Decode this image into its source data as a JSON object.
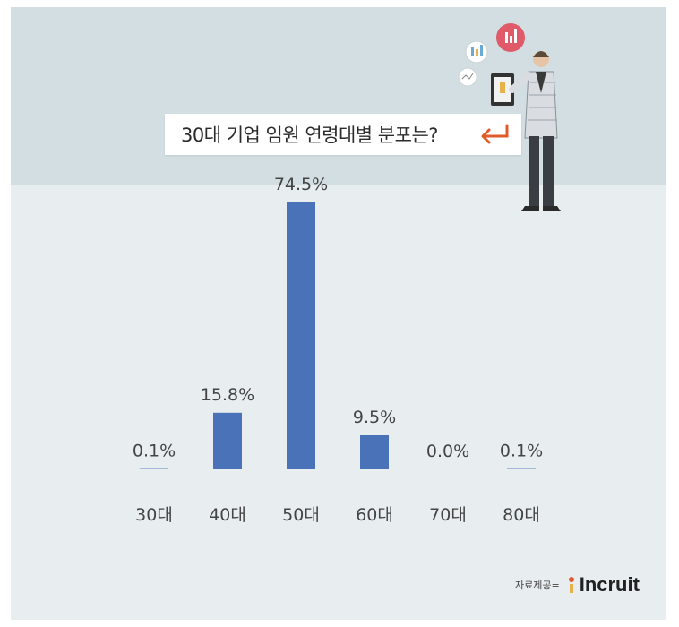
{
  "title": "30대 기업 임원 연령대별 분포는?",
  "source": {
    "label": "자료제공=",
    "brand": "Incruit"
  },
  "colors": {
    "bar": "#4a72b8",
    "top_band": "#d2dee2",
    "background": "#e8eef0",
    "arrow": "#e05a2a"
  },
  "chart_data": {
    "type": "bar",
    "title": "30대 기업 임원 연령대별 분포는?",
    "categories": [
      "30대",
      "40대",
      "50대",
      "60대",
      "70대",
      "80대"
    ],
    "values": [
      0.1,
      15.8,
      74.5,
      9.5,
      0.0,
      0.1
    ],
    "value_labels": [
      "0.1%",
      "15.8%",
      "74.5%",
      "9.5%",
      "0.0%",
      "0.1%"
    ],
    "xlabel": "",
    "ylabel": "",
    "ylim": [
      0,
      74.5
    ],
    "grid": false,
    "legend": "none"
  }
}
